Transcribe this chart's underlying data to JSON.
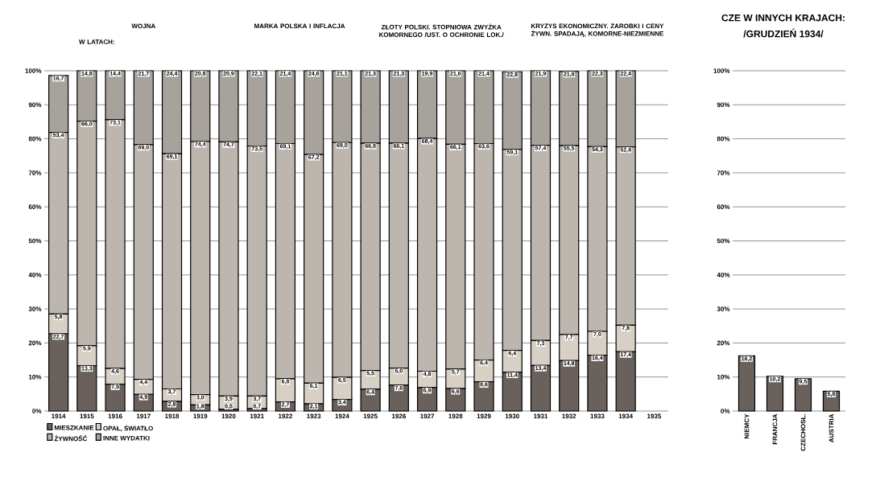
{
  "chart_data": [
    {
      "type": "bar",
      "stacked": true,
      "categories": [
        "1914",
        "1915",
        "1916",
        "1917",
        "1918",
        "1919",
        "1920",
        "1921",
        "1922",
        "1923",
        "1924",
        "1925",
        "1926",
        "1927",
        "1928",
        "1929",
        "1930",
        "1931",
        "1932",
        "1933",
        "1934",
        "1935"
      ],
      "series": [
        {
          "name": "MIESZKANIE",
          "color": "#6a605c",
          "values": [
            22.7,
            13.3,
            7.9,
            4.9,
            2.8,
            1.8,
            0.5,
            0.7,
            2.7,
            2.1,
            3.4,
            6.4,
            7.6,
            6.9,
            6.6,
            8.6,
            11.4,
            13.4,
            14.8,
            16.4,
            17.4,
            null
          ],
          "value_labels": [
            "22,7",
            "13,3",
            "7,9",
            "4,9",
            "2,8",
            "1,8",
            "0,5",
            "0,7",
            "2,7",
            "2,1",
            "3,4",
            "6,4",
            "7,6",
            "6,9",
            "6,6",
            "8,6",
            "11,4",
            "13,4",
            "14,8",
            "16,4",
            "17,4",
            null
          ]
        },
        {
          "name": "OPAŁ, ŚWIATŁO",
          "color": "#d8d0c4",
          "values": [
            5.8,
            5.9,
            4.6,
            4.4,
            3.7,
            3.0,
            3.9,
            3.7,
            6.8,
            6.1,
            6.5,
            5.5,
            5.0,
            4.8,
            5.7,
            6.4,
            6.4,
            7.3,
            7.7,
            7.0,
            7.8,
            null
          ],
          "value_labels": [
            "5,8",
            "5,9",
            "4,6",
            "4,4",
            "3,7",
            "3,0",
            "3,9",
            "3,7",
            "6,8",
            "6,1",
            "6,5",
            "5,5",
            "5,0",
            "4,8",
            "5,7",
            "6,4",
            "6,4",
            "7,3",
            "7,7",
            "7,0",
            "7,8",
            null
          ]
        },
        {
          "name": "ŻYWNOŚĆ",
          "color": "#bdb6ae",
          "values": [
            53.4,
            66.0,
            73.1,
            69.0,
            69.1,
            74.4,
            74.7,
            73.5,
            69.1,
            67.2,
            69.0,
            66.8,
            66.1,
            68.4,
            66.1,
            63.6,
            59.1,
            57.4,
            55.5,
            54.3,
            52.4,
            null
          ],
          "value_labels": [
            "53,4",
            "66,0",
            "73,1",
            "69,0",
            "69,1",
            "74,4",
            "74,7",
            "73,5",
            "69,1",
            "67,2",
            "69,0",
            "66,8",
            "66,1",
            "68,4",
            "66,1",
            "63,6",
            "59,1",
            "57,4",
            "55,5",
            "54,3",
            "52,4",
            null
          ]
        },
        {
          "name": "INNE WYDATKI",
          "color": "#a8a29c",
          "values": [
            16.7,
            14.8,
            14.4,
            21.7,
            24.4,
            20.8,
            20.9,
            22.1,
            21.4,
            24.6,
            21.1,
            21.3,
            21.3,
            19.9,
            21.6,
            21.4,
            22.8,
            21.9,
            21.8,
            22.3,
            22.4,
            null
          ],
          "value_labels": [
            "16,7",
            "14,8",
            "14,4",
            "21,7",
            "24,4",
            "20,8",
            "20,9",
            "22,1",
            "21,4",
            "24,6",
            "21,1",
            "21,3",
            "21,3",
            "19,9",
            "21,6",
            "21,4",
            "22,8",
            "21,9",
            "21,8",
            "22,3",
            "22,4",
            null
          ]
        }
      ],
      "ylim": [
        0,
        100
      ],
      "yticks": [
        {
          "value": 0,
          "label": "0%"
        },
        {
          "value": 10,
          "label": "10%"
        },
        {
          "value": 20,
          "label": "20%"
        },
        {
          "value": 30,
          "label": "30%"
        },
        {
          "value": 40,
          "label": "40%"
        },
        {
          "value": 50,
          "label": "50%"
        },
        {
          "value": 60,
          "label": "60%"
        },
        {
          "value": 70,
          "label": "70%"
        },
        {
          "value": 80,
          "label": "80%"
        },
        {
          "value": 90,
          "label": "90%"
        },
        {
          "value": 100,
          "label": "100%"
        }
      ],
      "grid": "y",
      "legend": "bottom",
      "annotations": [
        "WOJNA",
        "W LATACH:",
        "MARKA POLSKA I INFLACJA",
        "ZŁOTY POLSKI. STOPNIOWA ZWYŻKA KOMORNEGO /UST. O OCHRONIE LOK./",
        "KRYZYS EKONOMICZNY. ZAROBKI I CENY ŻYWN. SPADAJĄ, KOMORNE-NIEZMIENNE"
      ]
    },
    {
      "type": "bar",
      "title": "CZE W INNYCH KRAJACH:",
      "subtitle": "/GRUDZIEŃ 1934/",
      "categories": [
        "NIEMCY",
        "FRANCJA",
        "CZECHOSŁ.",
        "AUSTRIA"
      ],
      "series": [
        {
          "color": "#6a605c",
          "values": [
            16.2,
            10.2,
            9.5,
            5.8
          ],
          "value_labels": [
            "16,2",
            "10,2",
            "9,5",
            "5,8"
          ]
        }
      ],
      "ylim": [
        0,
        100
      ],
      "yticks": [
        {
          "value": 0,
          "label": "0%"
        },
        {
          "value": 10,
          "label": "10%"
        },
        {
          "value": 20,
          "label": "20%"
        },
        {
          "value": 30,
          "label": "30%"
        },
        {
          "value": 40,
          "label": "40%"
        },
        {
          "value": 50,
          "label": "50%"
        },
        {
          "value": 60,
          "label": "60%"
        },
        {
          "value": 70,
          "label": "70%"
        },
        {
          "value": 80,
          "label": "80%"
        },
        {
          "value": 90,
          "label": "90%"
        },
        {
          "value": 100,
          "label": "100%"
        }
      ],
      "grid": "y"
    }
  ]
}
